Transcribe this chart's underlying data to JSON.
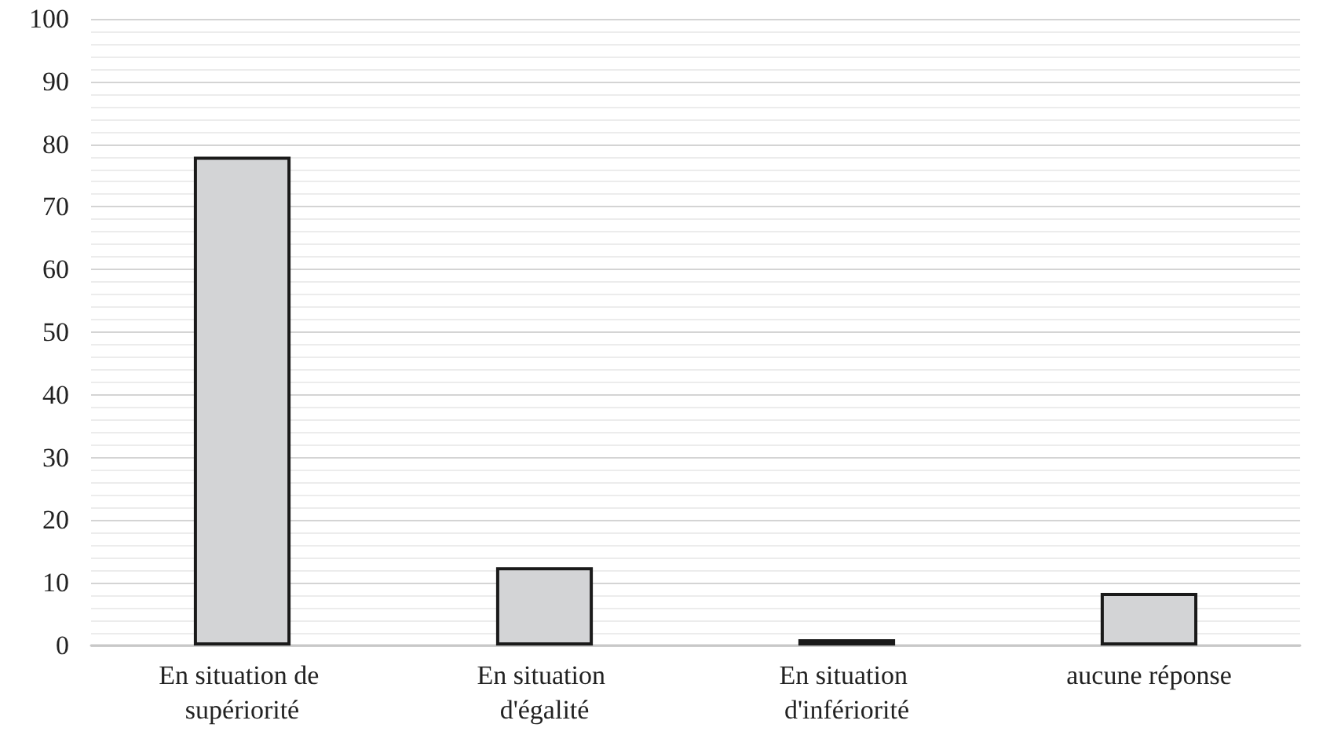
{
  "chart_data": {
    "type": "bar",
    "categories": [
      "En situation de supériorité",
      "En situation d'égalité",
      "En situation d'infériorité",
      "aucune réponse"
    ],
    "values": [
      78,
      12.5,
      1,
      8.4
    ],
    "color": "#d3d4d6",
    "ylim": [
      0,
      100
    ],
    "yticks": [
      0,
      {
        "value": 2,
        "label": null
      },
      {
        "value": 4,
        "label": null
      },
      {
        "value": 6,
        "label": null
      },
      {
        "value": 8,
        "label": null
      },
      10,
      {
        "value": 12,
        "label": null
      },
      {
        "value": 14,
        "label": null
      },
      {
        "value": 16,
        "label": null
      },
      {
        "value": 18,
        "label": null
      },
      20,
      {
        "value": 22,
        "label": null
      },
      {
        "value": 24,
        "label": null
      },
      {
        "value": 26,
        "label": null
      },
      {
        "value": 28,
        "label": null
      },
      30,
      {
        "value": 32,
        "label": null
      },
      {
        "value": 34,
        "label": null
      },
      {
        "value": 36,
        "label": null
      },
      {
        "value": 38,
        "label": null
      },
      40,
      {
        "value": 42,
        "label": null
      },
      {
        "value": 44,
        "label": null
      },
      {
        "value": 46,
        "label": null
      },
      {
        "value": 48,
        "label": null
      },
      50,
      {
        "value": 52,
        "label": null
      },
      {
        "value": 54,
        "label": null
      },
      {
        "value": 56,
        "label": null
      },
      {
        "value": 58,
        "label": null
      },
      60,
      {
        "value": 62,
        "label": null
      },
      {
        "value": 64,
        "label": null
      },
      {
        "value": 66,
        "label": null
      },
      {
        "value": 68,
        "label": null
      },
      70,
      {
        "value": 72,
        "label": null
      },
      {
        "value": 74,
        "label": null
      },
      {
        "value": 76,
        "label": null
      },
      {
        "value": 78,
        "label": null
      },
      80,
      {
        "value": 82,
        "label": null
      },
      {
        "value": 84,
        "label": null
      },
      {
        "value": 86,
        "label": null
      },
      {
        "value": 88,
        "label": null
      },
      90,
      {
        "value": 92,
        "label": null
      },
      {
        "value": 94,
        "label": null
      },
      {
        "value": 96,
        "label": null
      },
      {
        "value": 98,
        "label": null
      },
      100
    ],
    "grid": "y"
  }
}
